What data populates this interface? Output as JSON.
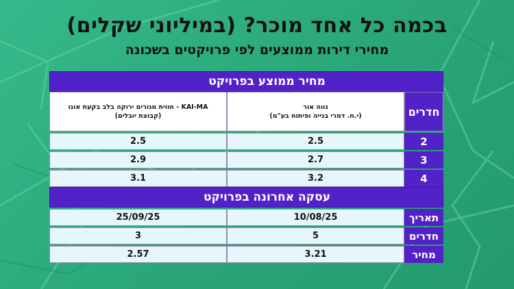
{
  "title": "בכמה כל אחד מוכר? (במיליוני שקלים)",
  "subtitle": "מחירי דירות ממוצעים לפי פרויקטים בשכונה",
  "table": {
    "section1_title": "מחיר ממוצע בפרויקט",
    "rooms_header": "חדרים",
    "project_a": {
      "name": "נווה אור",
      "developer": "(י.ח. דמרי בנייה ופיתוח בע\"מ)"
    },
    "project_b": {
      "name": "KAI-MA - חווית מגורים ירוקה בלב בקעת אונו",
      "developer": "(קבוצת יובלים)"
    },
    "avg_rows": [
      {
        "rooms": "2",
        "a": "2.5",
        "b": "2.5"
      },
      {
        "rooms": "3",
        "a": "2.7",
        "b": "2.9"
      },
      {
        "rooms": "4",
        "a": "3.2",
        "b": "3.1"
      }
    ],
    "section2_title": "עסקה אחרונה בפרויקט",
    "last_rows": [
      {
        "label": "תאריך",
        "a": "10/08/25",
        "b": "25/09/25"
      },
      {
        "label": "חדרים",
        "a": "5",
        "b": "3"
      },
      {
        "label": "מחיר",
        "a": "3.21",
        "b": "2.57"
      }
    ]
  }
}
